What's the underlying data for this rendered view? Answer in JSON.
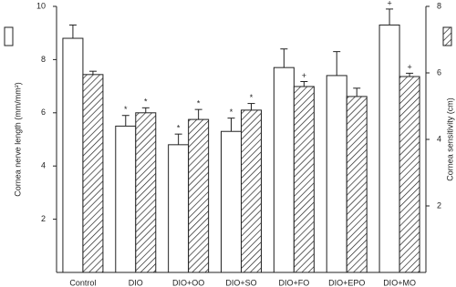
{
  "chart_data": {
    "type": "bar",
    "categories": [
      "Control",
      "DIO",
      "DIO+OO",
      "DIO+SO",
      "DIO+FO",
      "DIO+EPO",
      "DIO+MO"
    ],
    "ylabel": "Cornea nerve length (mm/mm²)",
    "y2label": "Cornea sensitivity (cm)",
    "ylim": [
      0,
      10
    ],
    "yticks": [
      2,
      4,
      6,
      8,
      10
    ],
    "y2lim": [
      0,
      8
    ],
    "y2ticks": [
      2,
      4,
      6,
      8
    ],
    "series": [
      {
        "color": "#ffffff",
        "pattern": "none",
        "values": [
          8.8,
          5.5,
          4.8,
          5.3,
          7.7,
          7.4,
          9.3
        ],
        "errors": [
          0.5,
          0.4,
          0.4,
          0.5,
          0.7,
          0.9,
          0.6
        ],
        "annotations": [
          null,
          "*",
          "*",
          "*",
          null,
          null,
          "+"
        ]
      },
      {
        "color": "#ffffff",
        "pattern": "hatch",
        "axis": "y2",
        "values": [
          5.95,
          4.8,
          4.6,
          4.88,
          5.59,
          5.29,
          5.89
        ],
        "errors": [
          0.1,
          0.15,
          0.3,
          0.2,
          0.15,
          0.25,
          0.1
        ],
        "annotations": [
          null,
          "*",
          "*",
          "*",
          "+",
          null,
          "+"
        ]
      }
    ]
  }
}
